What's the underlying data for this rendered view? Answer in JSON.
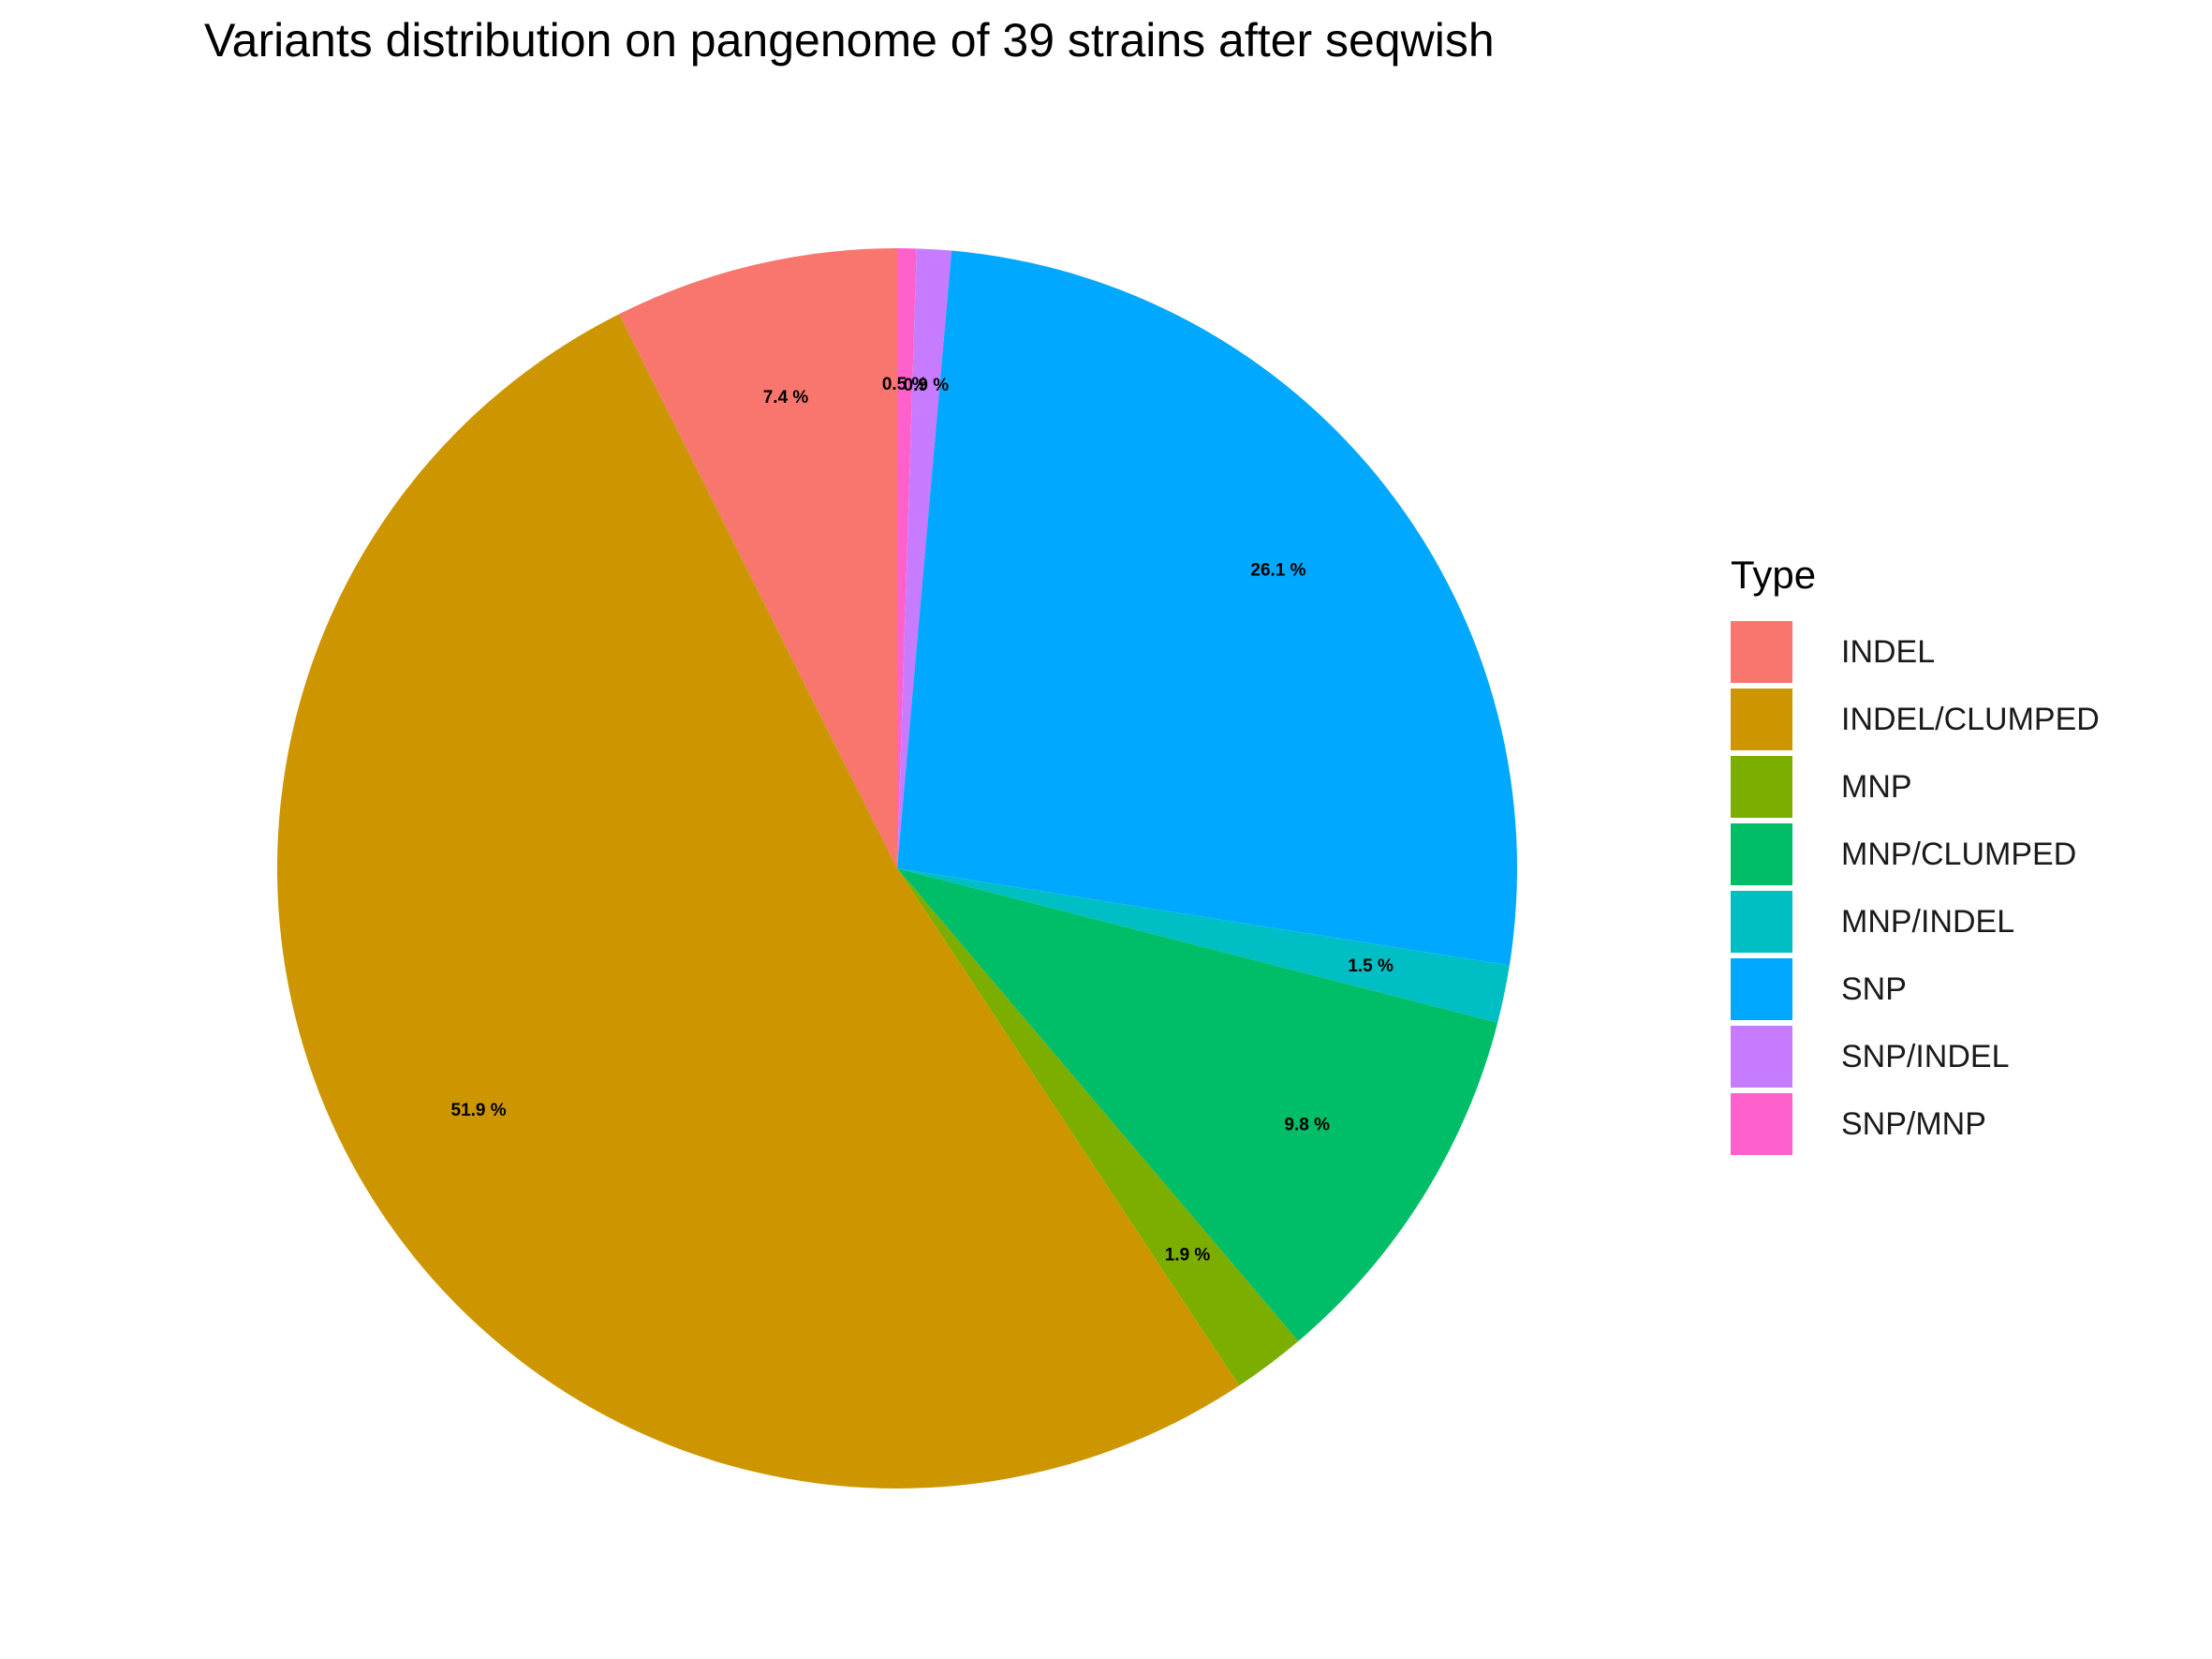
{
  "chart_data": {
    "type": "pie",
    "title": "Variants distribution on pangenome of 39 strains after seqwish",
    "legend_title": "Type",
    "legend_position": "right",
    "slices": [
      {
        "name": "SNP/MNP",
        "value": 0.5,
        "label": "0.5 %",
        "color": "#FF61CC"
      },
      {
        "name": "SNP/INDEL",
        "value": 0.9,
        "label": "0.9 %",
        "color": "#C77CFF"
      },
      {
        "name": "SNP",
        "value": 26.1,
        "label": "26.1 %",
        "color": "#00A9FF"
      },
      {
        "name": "MNP/INDEL",
        "value": 1.5,
        "label": "1.5 %",
        "color": "#00BFC4"
      },
      {
        "name": "MNP/CLUMPED",
        "value": 9.8,
        "label": "9.8 %",
        "color": "#00BE67"
      },
      {
        "name": "MNP",
        "value": 1.9,
        "label": "1.9 %",
        "color": "#7CAE00"
      },
      {
        "name": "INDEL/CLUMPED",
        "value": 51.9,
        "label": "51.9 %",
        "color": "#CD9600"
      },
      {
        "name": "INDEL",
        "value": 7.4,
        "label": "7.4 %",
        "color": "#F8766D"
      }
    ],
    "legend_items": [
      {
        "name": "INDEL",
        "color": "#F8766D"
      },
      {
        "name": "INDEL/CLUMPED",
        "color": "#CD9600"
      },
      {
        "name": "MNP",
        "color": "#7CAE00"
      },
      {
        "name": "MNP/CLUMPED",
        "color": "#00BE67"
      },
      {
        "name": "MNP/INDEL",
        "color": "#00BFC4"
      },
      {
        "name": "SNP",
        "color": "#00A9FF"
      },
      {
        "name": "SNP/INDEL",
        "color": "#C77CFF"
      },
      {
        "name": "SNP/MNP",
        "color": "#FF61CC"
      }
    ]
  }
}
